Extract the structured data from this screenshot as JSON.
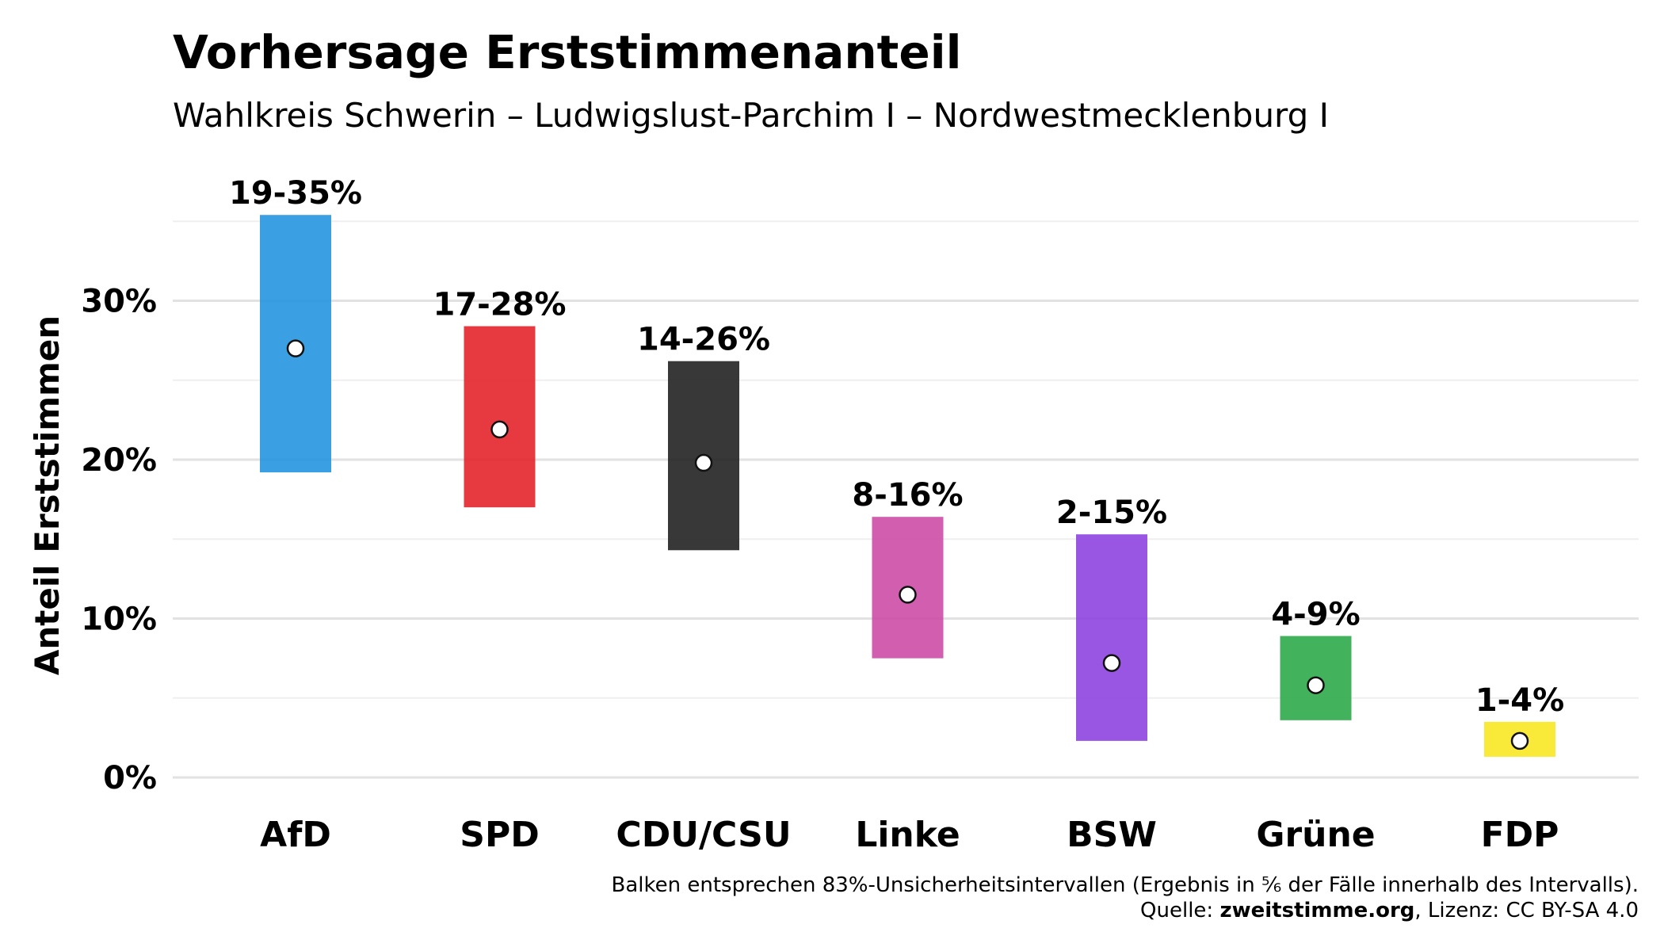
{
  "title": "Vorhersage Erststimmenanteil",
  "subtitle": "Wahlkreis Schwerin – Ludwigslust-Parchim I – Nordwestmecklenburg I",
  "caption": {
    "line1": "Balken entsprechen 83%-Unsicherheitsintervallen (Ergebnis in ⅚ der Fälle innerhalb des Intervalls).",
    "source_prefix": "Quelle: ",
    "source_bold": "zweitstimme.org",
    "source_suffix": ", Lizenz: CC BY-SA 4.0"
  },
  "chart_data": {
    "type": "bar",
    "subtype": "range-with-point",
    "title": "Vorhersage Erststimmenanteil",
    "subtitle": "Wahlkreis Schwerin – Ludwigslust-Parchim I – Nordwestmecklenburg I",
    "xlabel": "",
    "ylabel": "Anteil Erststimmen",
    "ylim": [
      0,
      36
    ],
    "yticks": [
      0,
      10,
      20,
      30
    ],
    "ytick_labels": [
      "0%",
      "10%",
      "20%",
      "30%"
    ],
    "grid": true,
    "legend": "none",
    "categories": [
      "AfD",
      "SPD",
      "CDU/CSU",
      "Linke",
      "BSW",
      "Grüne",
      "FDP"
    ],
    "range_labels": [
      "19-35%",
      "17-28%",
      "14-26%",
      "8-16%",
      "2-15%",
      "4-9%",
      "1-4%"
    ],
    "low": [
      19.2,
      17.0,
      14.3,
      7.5,
      2.3,
      3.6,
      1.3
    ],
    "high": [
      35.4,
      28.4,
      26.2,
      16.4,
      15.3,
      8.9,
      3.5
    ],
    "point": [
      27.0,
      21.9,
      19.8,
      11.5,
      7.2,
      5.8,
      2.3
    ],
    "colors": [
      "#2596E0",
      "#E3242B",
      "#222222",
      "#CC4DA6",
      "#8E44E0",
      "#2EAA4A",
      "#F8E823"
    ]
  }
}
